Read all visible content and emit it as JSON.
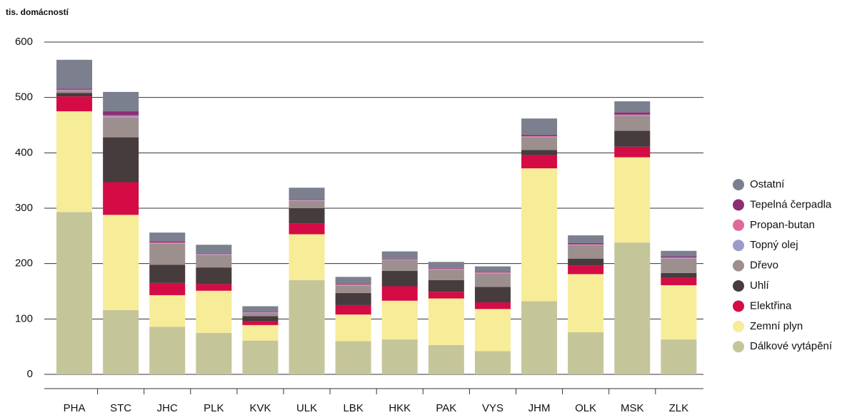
{
  "chart_data": {
    "type": "stacked-bar",
    "y_label": "tis. domácností",
    "categories": [
      "PHA",
      "STC",
      "JHC",
      "PLK",
      "KVK",
      "ULK",
      "LBK",
      "HKK",
      "PAK",
      "VYS",
      "JHM",
      "OLK",
      "MSK",
      "ZLK"
    ],
    "series": [
      {
        "name": "Dálkové vytápění",
        "color": "#c5c59a",
        "values": [
          293,
          116,
          86,
          75,
          61,
          170,
          60,
          63,
          53,
          42,
          132,
          76,
          238,
          63
        ]
      },
      {
        "name": "Zemní plyn",
        "color": "#f7ec98",
        "values": [
          182,
          172,
          57,
          76,
          28,
          83,
          48,
          70,
          84,
          76,
          240,
          105,
          154,
          98
        ]
      },
      {
        "name": "Elektřina",
        "color": "#d50b45",
        "values": [
          27,
          59,
          22,
          12,
          7,
          19,
          17,
          26,
          12,
          12,
          24,
          15,
          19,
          13
        ]
      },
      {
        "name": "Uhlí",
        "color": "#463b3d",
        "values": [
          6,
          81,
          33,
          30,
          9,
          28,
          22,
          28,
          21,
          28,
          9,
          13,
          29,
          9
        ]
      },
      {
        "name": "Dřevo",
        "color": "#9c8f8e",
        "values": [
          4,
          36,
          38,
          23,
          6,
          13,
          13,
          19,
          19,
          24,
          23,
          24,
          27,
          26
        ]
      },
      {
        "name": "Topný olej",
        "color": "#9c9ccc",
        "values": [
          1,
          2,
          1,
          1,
          0.5,
          1,
          1,
          1,
          1,
          1,
          1,
          1,
          1,
          1
        ]
      },
      {
        "name": "Propan-butan",
        "color": "#de6a9a",
        "values": [
          1,
          2,
          1,
          1,
          0.5,
          1,
          1,
          1,
          1,
          1,
          1,
          1,
          1,
          1
        ]
      },
      {
        "name": "Tepelná čerpadla",
        "color": "#8b2e72",
        "values": [
          2,
          7,
          2,
          1,
          1,
          1,
          1,
          1,
          1,
          1,
          2,
          2,
          4,
          2
        ]
      },
      {
        "name": "Ostatní",
        "color": "#7c7f8e",
        "values": [
          52,
          35,
          16,
          15,
          10,
          21,
          13,
          13,
          11,
          10,
          30,
          14,
          20,
          10
        ]
      }
    ],
    "ylim": [
      0,
      600
    ],
    "yticks": [
      0,
      100,
      200,
      300,
      400,
      500,
      600
    ],
    "grid": true,
    "legend": "right"
  }
}
